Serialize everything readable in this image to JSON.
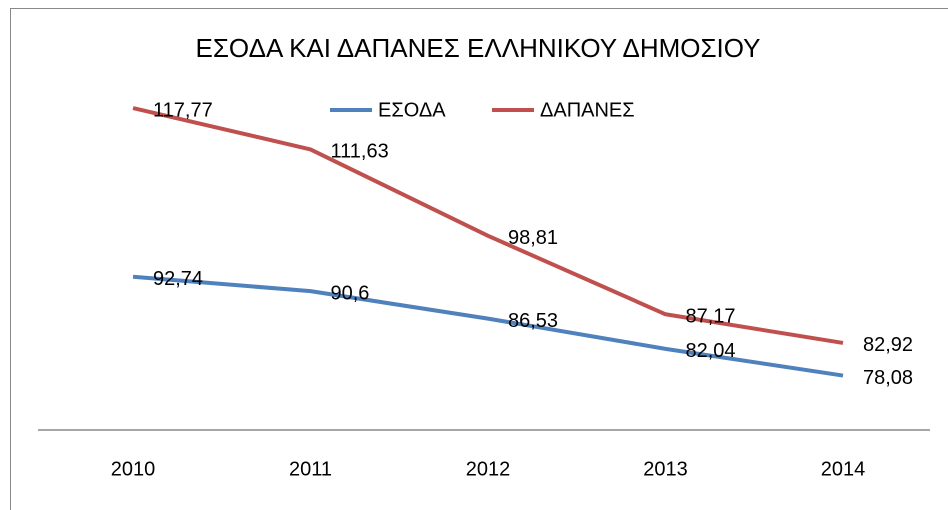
{
  "chart_data": {
    "type": "line",
    "title": "ΕΣΟΔΑ ΚΑΙ ΔΑΠΑΝΕΣ ΕΛΛΗΝΙΚΟΥ ΔΗΜΟΣΙΟΥ",
    "categories": [
      "2010",
      "2011",
      "2012",
      "2013",
      "2014"
    ],
    "series": [
      {
        "name": "ΕΣΟΔΑ",
        "color": "#4f81bd",
        "values": [
          92.74,
          90.6,
          86.53,
          82.04,
          78.08
        ],
        "value_labels": [
          "92,74",
          "90,6",
          "86,53",
          "82,04",
          "78,08"
        ]
      },
      {
        "name": "ΔΑΠΑΝΕΣ",
        "color": "#c0504d",
        "values": [
          117.77,
          111.63,
          98.81,
          87.17,
          82.92
        ],
        "value_labels": [
          "117,77",
          "111,63",
          "98,81",
          "87,17",
          "82,92"
        ]
      }
    ],
    "ylim": [
      70,
      120
    ],
    "legend": "top"
  }
}
